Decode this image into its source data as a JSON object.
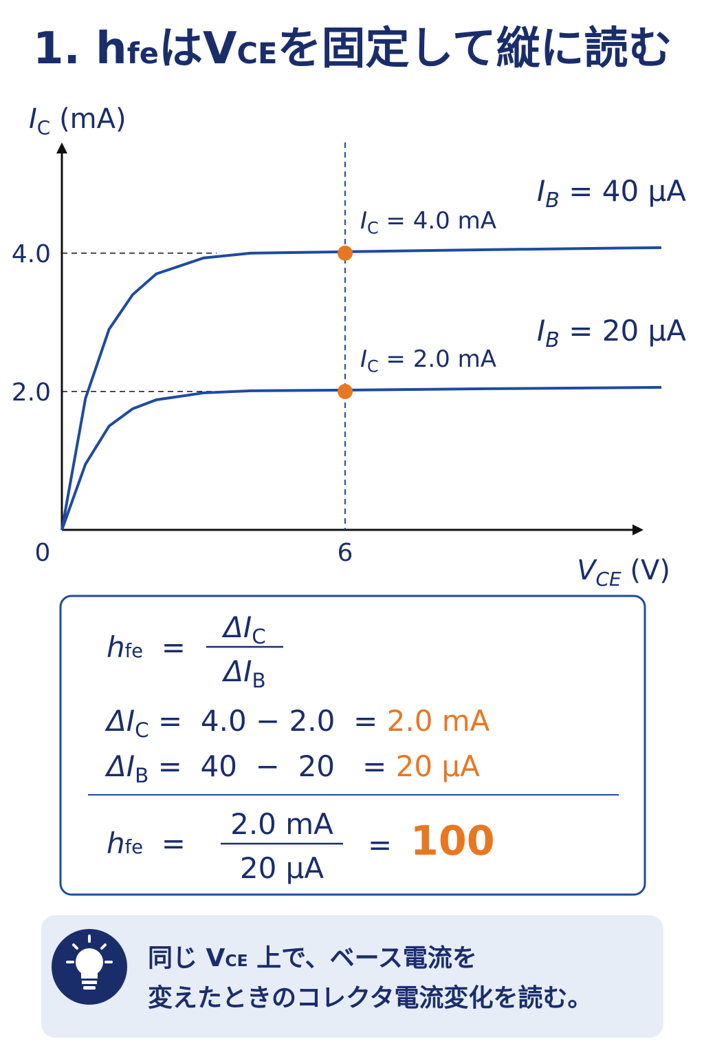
{
  "title": [
    {
      "text": "1. h"
    },
    {
      "text": "fe",
      "style": "sm"
    },
    {
      "text": "は"
    },
    {
      "text": "V"
    },
    {
      "text": "CE",
      "style": "sm"
    },
    {
      "text": "を固定して縦に読む"
    }
  ],
  "chart_data": {
    "type": "line",
    "y_label": [
      {
        "text": "I",
        "style": "i"
      },
      {
        "text": "C",
        "style": "sub"
      },
      {
        "text": " (mA)"
      }
    ],
    "x_label": [
      {
        "text": "V",
        "style": "i"
      },
      {
        "text": "CE",
        "style": "i sub"
      },
      {
        "text": " (V)"
      }
    ],
    "x": [
      0,
      0.5,
      1,
      1.5,
      2,
      3,
      4,
      6,
      9,
      12.7
    ],
    "series": [
      {
        "name": "IB = 40 μA",
        "color": "#1f4aa0",
        "values": [
          0,
          1.9,
          2.9,
          3.4,
          3.7,
          3.93,
          4.0,
          4.02,
          4.05,
          4.08
        ]
      },
      {
        "name": "IB = 20 μA",
        "color": "#1f4aa0",
        "values": [
          0,
          0.95,
          1.5,
          1.75,
          1.88,
          1.98,
          2.01,
          2.02,
          2.04,
          2.06
        ]
      }
    ],
    "xlim": [
      0,
      12.7
    ],
    "ylim": [
      0,
      5.6
    ],
    "xticks": [
      0,
      6
    ],
    "yticks": [
      {
        "value": 2,
        "label": "2.0"
      },
      {
        "value": 4,
        "label": "4.0"
      }
    ],
    "annotations": [
      {
        "text": [
          {
            "text": "I",
            "style": "i"
          },
          {
            "text": "C",
            "style": "sub"
          },
          {
            "text": " = 4.0 mA"
          }
        ],
        "x": 6,
        "y": 4.0,
        "color": "#e87722"
      },
      {
        "text": [
          {
            "text": "I",
            "style": "i"
          },
          {
            "text": "C",
            "style": "sub"
          },
          {
            "text": " = 2.0 mA"
          }
        ],
        "x": 6,
        "y": 2.0,
        "color": "#e87722"
      }
    ]
  },
  "formula": {
    "definition": {
      "lhs": [
        {
          "text": "h",
          "style": "i"
        },
        {
          "text": "fe",
          "style": "sm"
        },
        {
          "text": "  ="
        }
      ],
      "numerator": [
        {
          "text": "ΔI",
          "style": "i"
        },
        {
          "text": "C",
          "style": "sub"
        }
      ],
      "denominator": [
        {
          "text": "ΔI",
          "style": "i"
        },
        {
          "text": "B",
          "style": "sub"
        }
      ]
    },
    "lines": [
      [
        {
          "text": "ΔI",
          "style": "i"
        },
        {
          "text": "C",
          "style": "sub"
        },
        {
          "text": " =  4.0 − 2.0  = "
        },
        {
          "text": "2.0 mA",
          "style": "o"
        }
      ],
      [
        {
          "text": "ΔI",
          "style": "i"
        },
        {
          "text": "B",
          "style": "sub"
        },
        {
          "text": " =  40  −  20   = "
        },
        {
          "text": "20 μA",
          "style": "o"
        }
      ]
    ],
    "result": {
      "lhs": [
        {
          "text": "h",
          "style": "i"
        },
        {
          "text": "fe",
          "style": "sm"
        },
        {
          "text": "  ="
        }
      ],
      "numerator": [
        {
          "text": "2.0 mA"
        }
      ],
      "denominator": [
        {
          "text": "20 μA"
        }
      ],
      "rhs": [
        {
          "text": "=  "
        },
        {
          "text": "100",
          "style": "o b big"
        }
      ]
    }
  },
  "tip": {
    "lines": [
      [
        {
          "text": "同じ "
        },
        {
          "text": "V"
        },
        {
          "text": "CE",
          "style": "sm"
        },
        {
          "text": " 上で、ベース電流を"
        }
      ],
      [
        {
          "text": "変えたときのコレクタ電流変化を読む。"
        }
      ]
    ]
  }
}
